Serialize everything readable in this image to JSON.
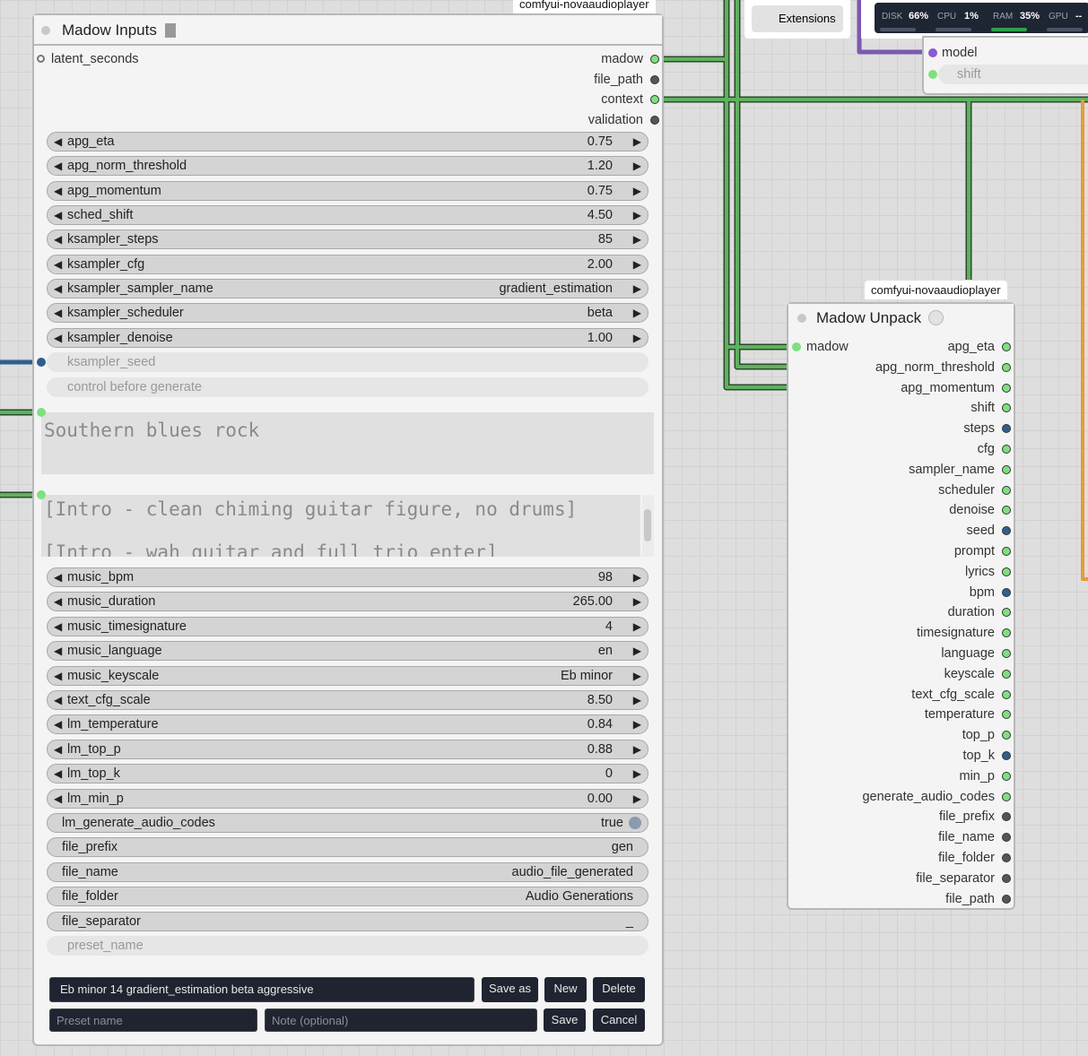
{
  "toolbar": {
    "extensions": "Extensions",
    "stats": [
      {
        "label": "DISK",
        "value": "66%"
      },
      {
        "label": "CPU",
        "value": "1%"
      },
      {
        "label": "RAM",
        "value": "35%"
      },
      {
        "label": "GPU",
        "value": "--"
      }
    ]
  },
  "partial_node": {
    "input": "model",
    "widget": "shift"
  },
  "inputs_node": {
    "badge": "comfyui-novaaudioplayer",
    "title": "Madow Inputs",
    "inputs": [
      "latent_seconds"
    ],
    "outputs": [
      {
        "name": "madow",
        "color": "#7ee07e"
      },
      {
        "name": "file_path",
        "color": "#555555"
      },
      {
        "name": "context",
        "color": "#7ee07e"
      },
      {
        "name": "validation",
        "color": "#555555"
      }
    ],
    "widgets_a": [
      {
        "name": "apg_eta",
        "value": "0.75",
        "kind": "number"
      },
      {
        "name": "apg_norm_threshold",
        "value": "1.20",
        "kind": "number"
      },
      {
        "name": "apg_momentum",
        "value": "0.75",
        "kind": "number"
      },
      {
        "name": "sched_shift",
        "value": "4.50",
        "kind": "number"
      },
      {
        "name": "ksampler_steps",
        "value": "85",
        "kind": "number"
      },
      {
        "name": "ksampler_cfg",
        "value": "2.00",
        "kind": "number"
      },
      {
        "name": "ksampler_sampler_name",
        "value": "gradient_estimation",
        "kind": "number"
      },
      {
        "name": "ksampler_scheduler",
        "value": "beta",
        "kind": "number"
      },
      {
        "name": "ksampler_denoise",
        "value": "1.00",
        "kind": "number"
      },
      {
        "name": "ksampler_seed",
        "kind": "disabled"
      },
      {
        "name": "control before generate",
        "kind": "disabled"
      }
    ],
    "prompt": "Southern blues rock",
    "lyrics": "[Intro - clean chiming guitar figure, no drums]\n\n[Intro - wah guitar and full trio enter]",
    "widgets_b": [
      {
        "name": "music_bpm",
        "value": "98",
        "kind": "number"
      },
      {
        "name": "music_duration",
        "value": "265.00",
        "kind": "number"
      },
      {
        "name": "music_timesignature",
        "value": "4",
        "kind": "number"
      },
      {
        "name": "music_language",
        "value": "en",
        "kind": "number"
      },
      {
        "name": "music_keyscale",
        "value": "Eb minor",
        "kind": "number"
      },
      {
        "name": "text_cfg_scale",
        "value": "8.50",
        "kind": "number"
      },
      {
        "name": "lm_temperature",
        "value": "0.84",
        "kind": "number"
      },
      {
        "name": "lm_top_p",
        "value": "0.88",
        "kind": "number"
      },
      {
        "name": "lm_top_k",
        "value": "0",
        "kind": "number"
      },
      {
        "name": "lm_min_p",
        "value": "0.00",
        "kind": "number"
      },
      {
        "name": "lm_generate_audio_codes",
        "value": "true",
        "kind": "toggle"
      },
      {
        "name": "file_prefix",
        "value": "gen",
        "kind": "text"
      },
      {
        "name": "file_name",
        "value": "audio_file_generated",
        "kind": "text"
      },
      {
        "name": "file_folder",
        "value": "Audio Generations",
        "kind": "text"
      },
      {
        "name": "file_separator",
        "value": "_",
        "kind": "text"
      },
      {
        "name": "preset_name",
        "kind": "disabled"
      }
    ],
    "preset": {
      "selected": "Eb minor 14 gradient_estimation beta aggressive",
      "save_as": "Save as",
      "new": "New",
      "delete": "Delete",
      "name_placeholder": "Preset name",
      "note_placeholder": "Note (optional)",
      "save": "Save",
      "cancel": "Cancel"
    }
  },
  "unpack_node": {
    "badge": "comfyui-novaaudioplayer",
    "title": "Madow Unpack",
    "input": "madow",
    "outputs": [
      {
        "name": "apg_eta",
        "color": "#7ee07e"
      },
      {
        "name": "apg_norm_threshold",
        "color": "#7ee07e"
      },
      {
        "name": "apg_momentum",
        "color": "#7ee07e"
      },
      {
        "name": "shift",
        "color": "#7ee07e"
      },
      {
        "name": "steps",
        "color": "#2f5f8f"
      },
      {
        "name": "cfg",
        "color": "#7ee07e"
      },
      {
        "name": "sampler_name",
        "color": "#7ee07e"
      },
      {
        "name": "scheduler",
        "color": "#7ee07e"
      },
      {
        "name": "denoise",
        "color": "#7ee07e"
      },
      {
        "name": "seed",
        "color": "#2f5f8f"
      },
      {
        "name": "prompt",
        "color": "#7ee07e"
      },
      {
        "name": "lyrics",
        "color": "#7ee07e"
      },
      {
        "name": "bpm",
        "color": "#2f5f8f"
      },
      {
        "name": "duration",
        "color": "#7ee07e"
      },
      {
        "name": "timesignature",
        "color": "#7ee07e"
      },
      {
        "name": "language",
        "color": "#7ee07e"
      },
      {
        "name": "keyscale",
        "color": "#7ee07e"
      },
      {
        "name": "text_cfg_scale",
        "color": "#7ee07e"
      },
      {
        "name": "temperature",
        "color": "#7ee07e"
      },
      {
        "name": "top_p",
        "color": "#7ee07e"
      },
      {
        "name": "top_k",
        "color": "#2f5f8f"
      },
      {
        "name": "min_p",
        "color": "#7ee07e"
      },
      {
        "name": "generate_audio_codes",
        "color": "#7ee07e"
      },
      {
        "name": "file_prefix",
        "color": "#555555"
      },
      {
        "name": "file_name",
        "color": "#555555"
      },
      {
        "name": "file_folder",
        "color": "#555555"
      },
      {
        "name": "file_separator",
        "color": "#555555"
      },
      {
        "name": "file_path",
        "color": "#555555"
      }
    ]
  }
}
